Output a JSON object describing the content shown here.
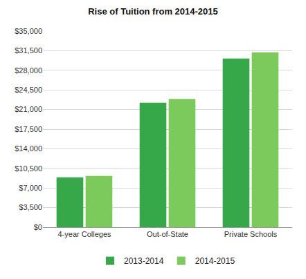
{
  "chart_data": {
    "type": "bar",
    "title": "Rise of Tuition from 2014-2015",
    "categories": [
      "4-year Colleges",
      "Out-of-State",
      "Private Schools"
    ],
    "series": [
      {
        "name": "2013-2014",
        "color": "#37a84a",
        "values": [
          8890,
          22200,
          30100
        ]
      },
      {
        "name": "2014-2015",
        "color": "#7cca5c",
        "values": [
          9140,
          22900,
          31200
        ]
      }
    ],
    "ylim": [
      0,
      35000
    ],
    "yticks": [
      {
        "value": 0,
        "label": "$0"
      },
      {
        "value": 3500,
        "label": "$3,500"
      },
      {
        "value": 7000,
        "label": "$7,000"
      },
      {
        "value": 10500,
        "label": "$10,500"
      },
      {
        "value": 14000,
        "label": "$14,000"
      },
      {
        "value": 17500,
        "label": "$17,500"
      },
      {
        "value": 21000,
        "label": "$21,000"
      },
      {
        "value": 24500,
        "label": "$24,500"
      },
      {
        "value": 28000,
        "label": "$28,000"
      },
      {
        "value": 31500,
        "label": "$31,500"
      },
      {
        "value": 35000,
        "label": "$35,000"
      }
    ],
    "grid": true,
    "legend": "bottom"
  }
}
